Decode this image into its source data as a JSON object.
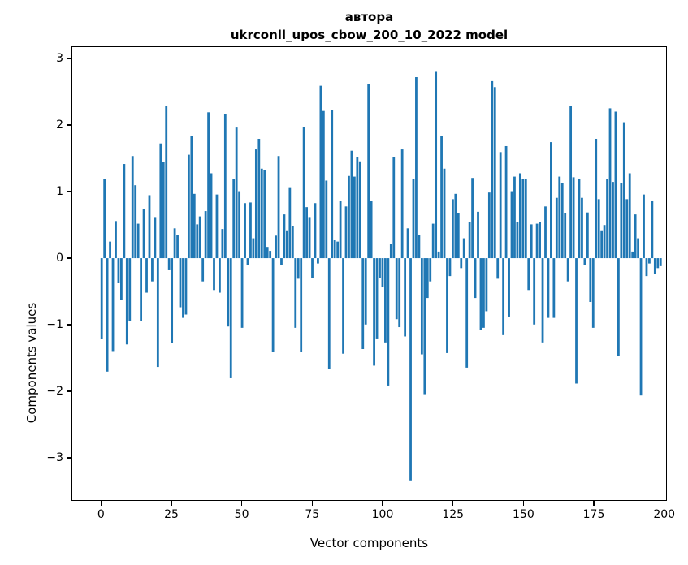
{
  "title_line1": "автора",
  "title_line2": "ukrconll_upos_cbow_200_10_2022 model",
  "chart_data": {
    "type": "bar",
    "title": "автора",
    "subtitle": "ukrconll_upos_cbow_200_10_2022 model",
    "xlabel": "Vector components",
    "ylabel": "Components values",
    "x_ticks": [
      0,
      25,
      50,
      75,
      100,
      125,
      150,
      175,
      200
    ],
    "y_ticks": [
      3,
      2,
      1,
      0,
      -1,
      -2,
      -3
    ],
    "xlim": [
      -10.5,
      200.7
    ],
    "ylim": [
      -3.65,
      3.18
    ],
    "grid": false,
    "legend": "none",
    "bar_color": "#1f77b4",
    "categories_note": "x = component index 0..199",
    "values": [
      -1.22,
      1.2,
      -1.71,
      0.25,
      -1.4,
      0.56,
      -0.37,
      -0.63,
      1.42,
      -1.3,
      -0.95,
      1.54,
      1.1,
      0.52,
      -0.95,
      0.74,
      -0.52,
      0.95,
      -0.35,
      0.62,
      -1.64,
      1.73,
      1.45,
      2.3,
      -0.17,
      -1.28,
      0.45,
      0.35,
      -0.74,
      -0.9,
      -0.85,
      1.56,
      1.84,
      0.97,
      0.51,
      0.63,
      -0.35,
      0.71,
      2.2,
      1.28,
      -0.48,
      0.96,
      -0.52,
      0.44,
      2.17,
      -1.03,
      -1.81,
      1.2,
      1.97,
      1.01,
      -1.05,
      0.83,
      -0.1,
      0.84,
      0.3,
      1.64,
      1.8,
      1.35,
      1.33,
      0.17,
      0.11,
      -1.41,
      0.34,
      1.54,
      -0.1,
      0.66,
      0.42,
      1.07,
      0.48,
      -1.05,
      -0.31,
      -1.41,
      1.98,
      0.77,
      0.62,
      -0.3,
      0.83,
      -0.08,
      2.6,
      2.22,
      1.17,
      -1.67,
      2.24,
      0.27,
      0.25,
      0.86,
      -1.44,
      0.78,
      1.24,
      1.62,
      1.23,
      1.52,
      1.46,
      -1.37,
      -1.0,
      2.62,
      0.86,
      -1.62,
      -1.21,
      -0.3,
      -0.44,
      -1.27,
      -1.92,
      0.22,
      1.52,
      -0.92,
      -1.04,
      1.64,
      -1.18,
      0.45,
      -3.35,
      1.19,
      2.73,
      0.35,
      -1.45,
      -2.05,
      -0.6,
      -0.35,
      0.52,
      2.81,
      0.1,
      1.84,
      1.35,
      -1.43,
      -0.27,
      0.89,
      0.97,
      0.68,
      -0.15,
      0.3,
      -1.65,
      0.54,
      1.21,
      -0.6,
      0.7,
      -1.08,
      -1.05,
      -0.8,
      0.99,
      2.67,
      2.58,
      -0.31,
      1.6,
      -1.16,
      1.69,
      -0.88,
      1.01,
      1.23,
      0.54,
      1.28,
      1.2,
      1.2,
      -0.48,
      0.51,
      -1.0,
      0.52,
      0.54,
      -1.27,
      0.78,
      -0.9,
      1.75,
      -0.9,
      0.91,
      1.23,
      1.13,
      0.68,
      -0.35,
      2.3,
      1.22,
      -1.89,
      1.19,
      0.91,
      -0.1,
      0.69,
      -0.66,
      -1.05,
      1.8,
      0.89,
      0.42,
      0.5,
      1.19,
      2.26,
      1.15,
      2.21,
      -1.48,
      1.13,
      2.05,
      0.89,
      1.28,
      0.1,
      0.66,
      0.3,
      -2.07,
      0.96,
      -0.27,
      -0.08,
      0.87,
      -0.24,
      -0.15,
      -0.12
    ]
  }
}
